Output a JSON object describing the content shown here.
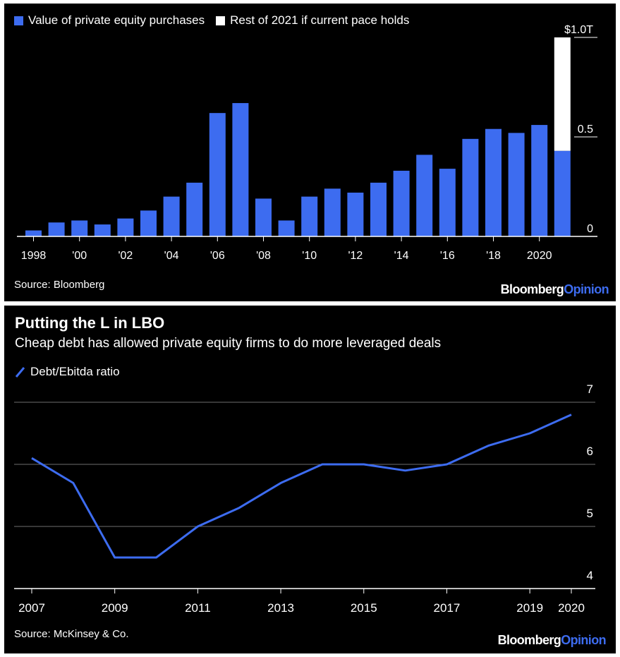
{
  "chart_data": [
    {
      "type": "bar",
      "title": "",
      "legend": [
        {
          "label": "Value of private equity purchases",
          "color": "#3d6cf0"
        },
        {
          "label": "Rest of 2021 if current pace holds",
          "color": "#ffffff"
        }
      ],
      "categories": [
        "1998",
        "1999",
        "2000",
        "2001",
        "2002",
        "2003",
        "2004",
        "2005",
        "2006",
        "2007",
        "2008",
        "2009",
        "2010",
        "2011",
        "2012",
        "2013",
        "2014",
        "2015",
        "2016",
        "2017",
        "2018",
        "2019",
        "2020",
        "2021"
      ],
      "series": [
        {
          "name": "Value of private equity purchases",
          "color": "#3d6cf0",
          "values": [
            0.03,
            0.07,
            0.08,
            0.06,
            0.09,
            0.13,
            0.2,
            0.27,
            0.62,
            0.67,
            0.19,
            0.08,
            0.2,
            0.24,
            0.22,
            0.27,
            0.33,
            0.41,
            0.34,
            0.49,
            0.54,
            0.52,
            0.56,
            0.43
          ]
        },
        {
          "name": "Rest of 2021 if current pace holds",
          "color": "#ffffff",
          "values": [
            0,
            0,
            0,
            0,
            0,
            0,
            0,
            0,
            0,
            0,
            0,
            0,
            0,
            0,
            0,
            0,
            0,
            0,
            0,
            0,
            0,
            0,
            0,
            0.57
          ]
        }
      ],
      "stacked": true,
      "ylim": [
        0,
        1.0
      ],
      "yticks": [
        {
          "value": 0,
          "label": "0"
        },
        {
          "value": 0.5,
          "label": "0.5"
        },
        {
          "value": 1.0,
          "label": "$1.0T"
        }
      ],
      "xtick_labels": [
        {
          "index": 0,
          "label": "1998"
        },
        {
          "index": 2,
          "label": "'00"
        },
        {
          "index": 4,
          "label": "'02"
        },
        {
          "index": 6,
          "label": "'04"
        },
        {
          "index": 8,
          "label": "'06"
        },
        {
          "index": 10,
          "label": "'08"
        },
        {
          "index": 12,
          "label": "'10"
        },
        {
          "index": 14,
          "label": "'12"
        },
        {
          "index": 16,
          "label": "'14"
        },
        {
          "index": 18,
          "label": "'16"
        },
        {
          "index": 20,
          "label": "'18"
        },
        {
          "index": 22,
          "label": "2020"
        }
      ],
      "source": "Source: Bloomberg",
      "brand": {
        "part1": "Bloomberg",
        "part2": "Opinion"
      }
    },
    {
      "type": "line",
      "title": "Putting the L in LBO",
      "subtitle": "Cheap debt has allowed private equity firms to do more leveraged deals",
      "legend": [
        {
          "label": "Debt/Ebitda ratio",
          "color": "#3d6cf0"
        }
      ],
      "x": [
        2007,
        2008,
        2009,
        2010,
        2011,
        2012,
        2013,
        2014,
        2015,
        2016,
        2017,
        2018,
        2019,
        2020
      ],
      "series": [
        {
          "name": "Debt/Ebitda ratio",
          "color": "#3d6cf0",
          "values": [
            6.1,
            5.7,
            4.5,
            4.5,
            5.0,
            5.3,
            5.7,
            6.0,
            6.0,
            5.9,
            6.0,
            6.3,
            6.5,
            6.8
          ]
        }
      ],
      "ylim": [
        4,
        7
      ],
      "yticks": [
        4,
        5,
        6,
        7
      ],
      "xticks": [
        "2007",
        "2009",
        "2011",
        "2013",
        "2015",
        "2017",
        "2019",
        "2020"
      ],
      "xtick_values": [
        2007,
        2009,
        2011,
        2013,
        2015,
        2017,
        2019,
        2020
      ],
      "source": "Source: McKinsey & Co.",
      "brand": {
        "part1": "Bloomberg",
        "part2": "Opinion"
      }
    }
  ]
}
